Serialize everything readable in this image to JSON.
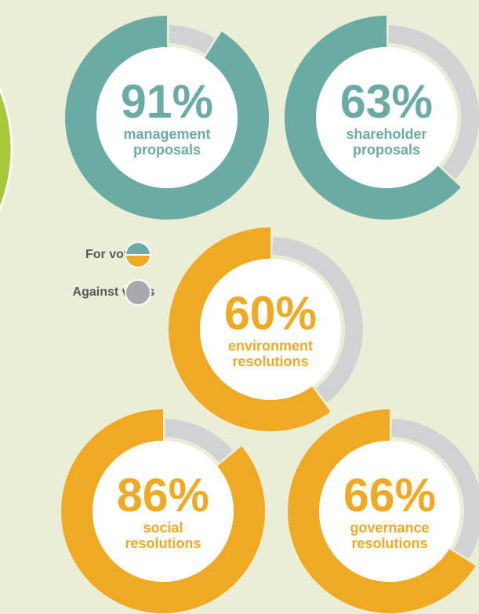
{
  "legend": [
    {
      "label": "For votes",
      "colors": [
        "#6aaba3",
        "#f0a922"
      ]
    },
    {
      "label": "Against votes",
      "color": "#a8a9ad"
    }
  ],
  "chart_data": [
    {
      "type": "donut",
      "value": 91,
      "value_label": "91%",
      "label": [
        "management",
        "proposals"
      ],
      "color": "#6aaba3",
      "against_color": "#d1d2d4"
    },
    {
      "type": "donut",
      "value": 63,
      "value_label": "63%",
      "label": [
        "shareholder",
        "proposals"
      ],
      "color": "#6aaba3",
      "against_color": "#d1d2d4"
    },
    {
      "type": "donut",
      "value": 60,
      "value_label": "60%",
      "label": [
        "environment",
        "resolutions"
      ],
      "color": "#f0a922",
      "against_color": "#d1d2d4"
    },
    {
      "type": "donut",
      "value": 86,
      "value_label": "86%",
      "label": [
        "social",
        "resolutions"
      ],
      "color": "#f0a922",
      "against_color": "#d1d2d4"
    },
    {
      "type": "donut",
      "value": 66,
      "value_label": "66%",
      "label": [
        "governance",
        "resolutions"
      ],
      "color": "#f0a922",
      "against_color": "#d1d2d4"
    }
  ]
}
